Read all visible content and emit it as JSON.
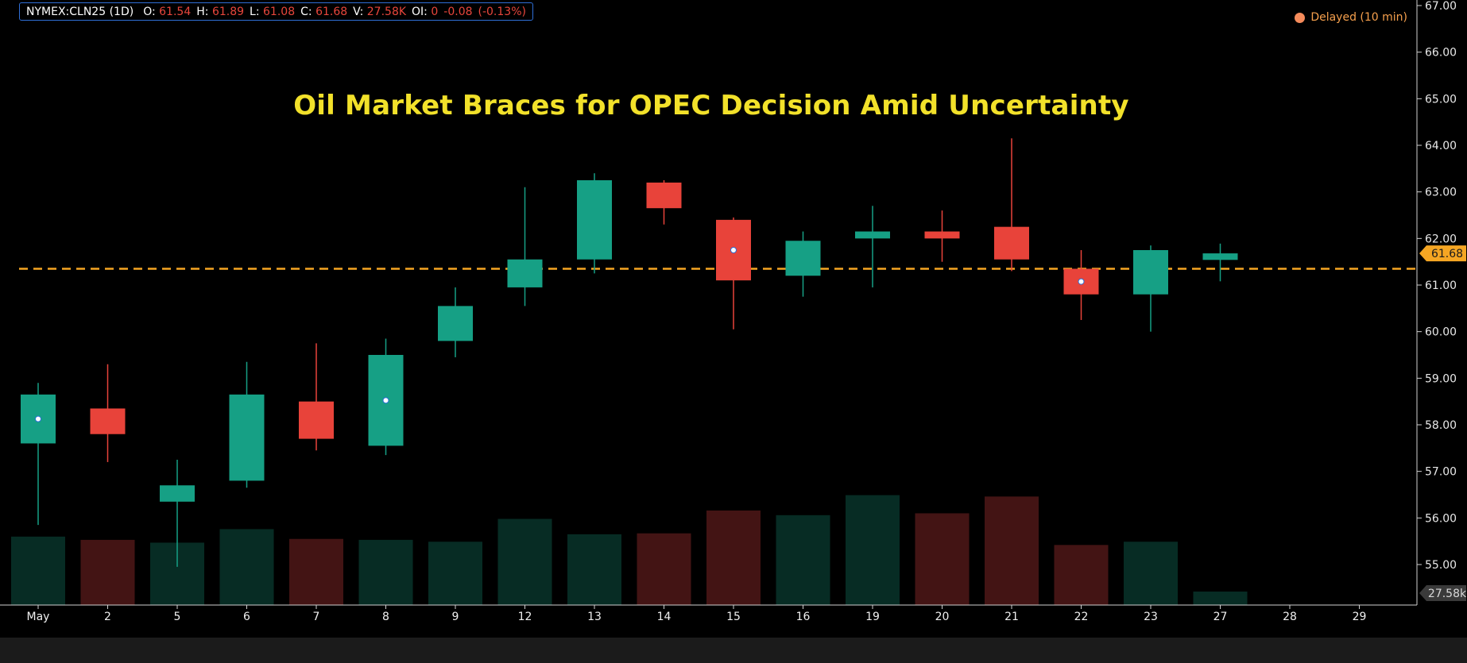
{
  "legend": {
    "symbol": "NYMEX:CLN25 (1D)",
    "open_label": "O:",
    "open": "61.54",
    "high_label": "H:",
    "high": "61.89",
    "low_label": "L:",
    "low": "61.08",
    "close_label": "C:",
    "close": "61.68",
    "volume_label": "V:",
    "volume": "27.58K",
    "oi_label": "OI:",
    "oi": "0",
    "change": "-0.08",
    "change_pct": "(-0.13%)"
  },
  "status": {
    "delayed": "Delayed (10 min)"
  },
  "colors": {
    "up": "#16a085",
    "down": "#e8433a",
    "up_volume": "#072c24",
    "down_volume": "#431414",
    "price_line": "#f5a623",
    "title": "#f2e12a"
  },
  "chart_data": {
    "type": "candlestick",
    "title": "Oil Market Braces for OPEC Decision Amid Uncertainty",
    "ylim": [
      54.2,
      67.0
    ],
    "y_ticks": [
      "55.00",
      "56.00",
      "57.00",
      "58.00",
      "59.00",
      "60.00",
      "61.00",
      "62.00",
      "63.00",
      "64.00",
      "65.00",
      "66.00",
      "67.00"
    ],
    "x_labels": [
      "May",
      "2",
      "5",
      "6",
      "7",
      "8",
      "9",
      "12",
      "13",
      "14",
      "15",
      "16",
      "19",
      "20",
      "21",
      "22",
      "23",
      "27",
      "28",
      "29"
    ],
    "candles": [
      {
        "label": "May",
        "open": 57.6,
        "high": 58.9,
        "low": 55.85,
        "close": 58.65,
        "volume_level": 55.6,
        "marker": true
      },
      {
        "label": "2",
        "open": 58.35,
        "high": 59.3,
        "low": 57.2,
        "close": 57.8,
        "volume_level": 55.53,
        "marker": false
      },
      {
        "label": "5",
        "open": 56.35,
        "high": 57.25,
        "low": 54.95,
        "close": 56.7,
        "volume_level": 55.47,
        "marker": false
      },
      {
        "label": "6",
        "open": 56.8,
        "high": 59.35,
        "low": 56.65,
        "close": 58.65,
        "volume_level": 55.76,
        "marker": false
      },
      {
        "label": "7",
        "open": 58.5,
        "high": 59.75,
        "low": 57.45,
        "close": 57.7,
        "volume_level": 55.55,
        "marker": false
      },
      {
        "label": "8",
        "open": 57.55,
        "high": 59.85,
        "low": 57.35,
        "close": 59.5,
        "volume_level": 55.53,
        "marker": true
      },
      {
        "label": "9",
        "open": 59.8,
        "high": 60.95,
        "low": 59.45,
        "close": 60.55,
        "volume_level": 55.49,
        "marker": false
      },
      {
        "label": "12",
        "open": 60.95,
        "high": 63.1,
        "low": 60.55,
        "close": 61.55,
        "volume_level": 55.98,
        "marker": false
      },
      {
        "label": "13",
        "open": 61.55,
        "high": 63.4,
        "low": 61.25,
        "close": 63.25,
        "volume_level": 55.65,
        "marker": false
      },
      {
        "label": "14",
        "open": 63.2,
        "high": 63.25,
        "low": 62.3,
        "close": 62.65,
        "volume_level": 55.67,
        "marker": false
      },
      {
        "label": "15",
        "open": 62.4,
        "high": 62.45,
        "low": 60.05,
        "close": 61.1,
        "volume_level": 56.16,
        "marker": true
      },
      {
        "label": "16",
        "open": 61.2,
        "high": 62.15,
        "low": 60.75,
        "close": 61.95,
        "volume_level": 56.06,
        "marker": false
      },
      {
        "label": "19",
        "open": 62.0,
        "high": 62.7,
        "low": 60.95,
        "close": 62.15,
        "volume_level": 56.49,
        "marker": false
      },
      {
        "label": "20",
        "open": 62.15,
        "high": 62.6,
        "low": 61.5,
        "close": 62.0,
        "volume_level": 56.1,
        "marker": false
      },
      {
        "label": "21",
        "open": 62.25,
        "high": 64.15,
        "low": 61.3,
        "close": 61.55,
        "volume_level": 56.46,
        "marker": false
      },
      {
        "label": "22",
        "open": 61.35,
        "high": 61.75,
        "low": 60.25,
        "close": 60.8,
        "volume_level": 55.42,
        "marker": true
      },
      {
        "label": "23",
        "open": 60.8,
        "high": 61.85,
        "low": 60.0,
        "close": 61.75,
        "volume_level": 55.49,
        "marker": false
      },
      {
        "label": "27",
        "open": 61.54,
        "high": 61.89,
        "low": 61.08,
        "close": 61.68,
        "volume_level": 54.42,
        "marker": false
      }
    ],
    "reference_line": 61.35,
    "last_price": "61.68",
    "volume_value": "27.58k"
  }
}
